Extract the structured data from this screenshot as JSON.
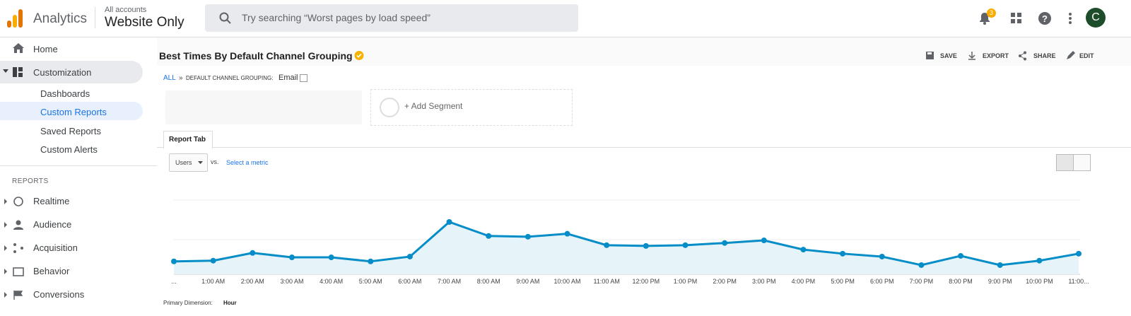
{
  "header": {
    "product": "Analytics",
    "account_path": "All accounts",
    "property": "Website Only",
    "search_placeholder": "Try searching “Worst pages by load speed”",
    "notification_count": 3,
    "avatar": "C"
  },
  "sidebar": {
    "items": [
      "Home",
      "Customization"
    ],
    "customization_items": [
      "Dashboards",
      "Custom Reports",
      "Saved Reports",
      "Custom Alerts"
    ],
    "section": "REPORTS",
    "reports": [
      "Realtime",
      "Audience",
      "Acquisition",
      "Behavior",
      "Conversions"
    ]
  },
  "report": {
    "title": "Best Times By Default Channel Grouping",
    "actions": [
      "SAVE",
      "EXPORT",
      "SHARE",
      "EDIT"
    ],
    "breadcrumb_all": "ALL",
    "breadcrumb_sep": "»",
    "breadcrumb_dim": "DEFAULT CHANNEL GROUPING:",
    "breadcrumb_value": "Email",
    "add_segment": "+ Add Segment",
    "tab": "Report Tab",
    "metric": "Users",
    "vs": "vs.",
    "select_metric": "Select a metric",
    "primary_dimension_label": "Primary Dimension:",
    "primary_dimension": "Hour"
  },
  "chart_data": {
    "type": "line",
    "categories": [
      "...",
      "1:00 AM",
      "2:00 AM",
      "3:00 AM",
      "4:00 AM",
      "5:00 AM",
      "6:00 AM",
      "7:00 AM",
      "8:00 AM",
      "9:00 AM",
      "10:00 AM",
      "11:00 AM",
      "12:00 PM",
      "1:00 PM",
      "2:00 PM",
      "3:00 PM",
      "4:00 PM",
      "5:00 PM",
      "6:00 PM",
      "7:00 PM",
      "8:00 PM",
      "9:00 PM",
      "10:00 PM",
      "11:00..."
    ],
    "series": [
      {
        "color": "#058dc7",
        "values": [
          35,
          37,
          58,
          46,
          46,
          35,
          48,
          142,
          104,
          102,
          110,
          79,
          77,
          79,
          85,
          92,
          67,
          56,
          48,
          25,
          50,
          25,
          37,
          56
        ]
      }
    ],
    "ylim": [
      0,
      236
    ],
    "area_color": "#e6f3f9"
  }
}
